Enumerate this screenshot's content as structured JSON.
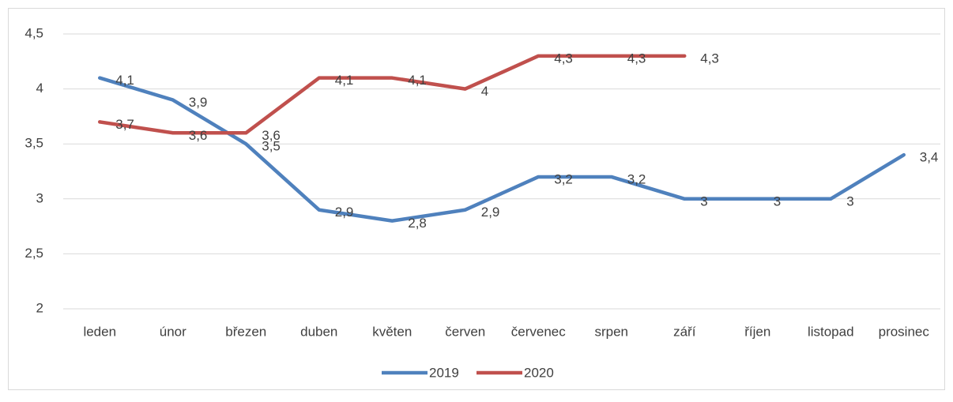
{
  "chart_data": {
    "type": "line",
    "categories": [
      "leden",
      "únor",
      "březen",
      "duben",
      "květen",
      "červen",
      "červenec",
      "srpen",
      "září",
      "říjen",
      "listopad",
      "prosinec"
    ],
    "series": [
      {
        "name": "2019",
        "color": "#4f81bd",
        "values": [
          4.1,
          3.9,
          3.5,
          2.9,
          2.8,
          2.9,
          3.2,
          3.2,
          3,
          3,
          3,
          3.4
        ],
        "value_labels": [
          "4,1",
          "3,9",
          "3,5",
          "2,9",
          "2,8",
          "2,9",
          "3,2",
          "3,2",
          "3",
          "3",
          "3",
          "3,4"
        ]
      },
      {
        "name": "2020",
        "color": "#c0504d",
        "values": [
          3.7,
          3.6,
          3.6,
          4.1,
          4.1,
          4,
          4.3,
          4.3,
          4.3,
          null,
          null,
          null
        ],
        "value_labels": [
          "3,7",
          "3,6",
          "3,6",
          "4,1",
          "4,1",
          "4",
          "4,3",
          "4,3",
          "4,3",
          null,
          null,
          null
        ]
      }
    ],
    "ylim": [
      2,
      4.5
    ],
    "yticks": [
      2,
      {
        "value": 2.5,
        "label": "2,5"
      },
      3,
      {
        "value": 3.5,
        "label": "3,5"
      },
      4,
      {
        "value": 4.5,
        "label": "4,5"
      }
    ],
    "grid": true,
    "legend": "bottom"
  }
}
